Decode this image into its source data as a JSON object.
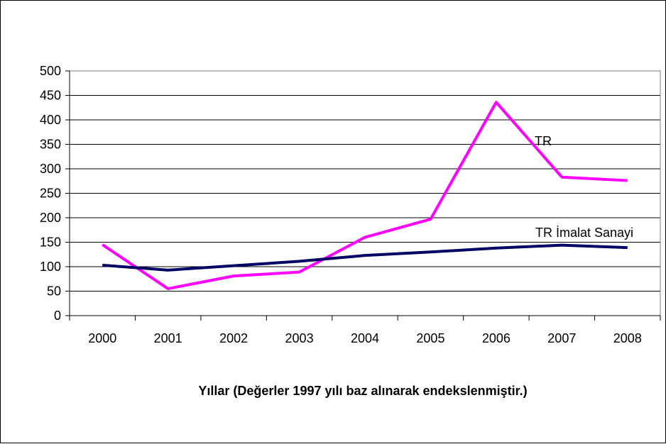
{
  "chart_data": {
    "type": "line",
    "categories": [
      "2000",
      "2001",
      "2002",
      "2003",
      "2004",
      "2005",
      "2006",
      "2007",
      "2008"
    ],
    "series": [
      {
        "name": "TR",
        "values": [
          145,
          55,
          81,
          89,
          160,
          197,
          436,
          283,
          276
        ],
        "color": "#ff00ff"
      },
      {
        "name": "TR İmalat Sanayi",
        "values": [
          103,
          93,
          102,
          111,
          123,
          130,
          138,
          144,
          139
        ],
        "color": "#000066"
      }
    ],
    "title": "",
    "xlabel": "Yıllar (Değerler 1997 yılı baz alınarak endekslenmiştir.)",
    "ylabel": "",
    "ylim": [
      0,
      500
    ],
    "yticks": [
      0,
      50,
      100,
      150,
      200,
      250,
      300,
      350,
      400,
      450,
      500
    ],
    "grid": true,
    "legend": "inline labels near lines"
  }
}
